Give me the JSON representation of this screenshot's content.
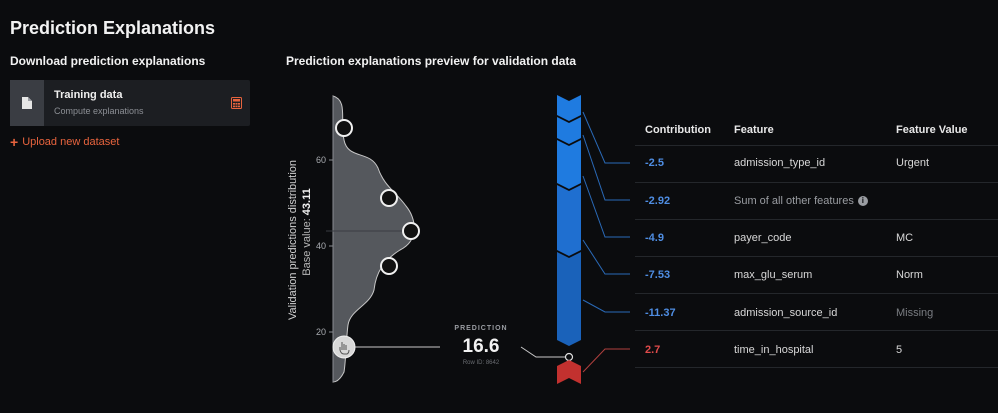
{
  "page": {
    "title": "Prediction Explanations"
  },
  "download": {
    "heading": "Download prediction explanations",
    "card": {
      "title": "Training data",
      "subtitle": "Compute explanations",
      "icon": "file-icon",
      "action_icon": "calculator-icon"
    },
    "upload_label": "Upload new dataset",
    "accent": "#e8643e"
  },
  "preview": {
    "heading": "Prediction explanations preview for validation data",
    "distribution": {
      "axis_title": "Validation predictions distribution",
      "base_prefix": "Base value: ",
      "base_value": "43.11",
      "ticks": [
        "60",
        "40",
        "20"
      ],
      "tick_values": [
        60,
        40,
        20
      ]
    },
    "prediction": {
      "label": "PREDICTION",
      "value": "16.6",
      "row_id": "Row ID: 8642"
    }
  },
  "table": {
    "headers": {
      "contribution": "Contribution",
      "feature": "Feature",
      "feature_value": "Feature Value"
    },
    "rows": [
      {
        "contribution": "-2.5",
        "feature": "admission_type_id",
        "value": "Urgent",
        "sign": "neg"
      },
      {
        "contribution": "-2.92",
        "feature": "Sum of all other features",
        "value": "",
        "sign": "neg",
        "info": "i"
      },
      {
        "contribution": "-4.9",
        "feature": "payer_code",
        "value": "MC",
        "sign": "neg"
      },
      {
        "contribution": "-7.53",
        "feature": "max_glu_serum",
        "value": "Norm",
        "sign": "neg"
      },
      {
        "contribution": "-11.37",
        "feature": "admission_source_id",
        "value": "Missing",
        "sign": "neg"
      },
      {
        "contribution": "2.7",
        "feature": "time_in_hospital",
        "value": "5",
        "sign": "pos"
      }
    ]
  },
  "colors": {
    "negative": "#1f7be0",
    "positive": "#c2312f",
    "distribution": "#5a5d62"
  }
}
